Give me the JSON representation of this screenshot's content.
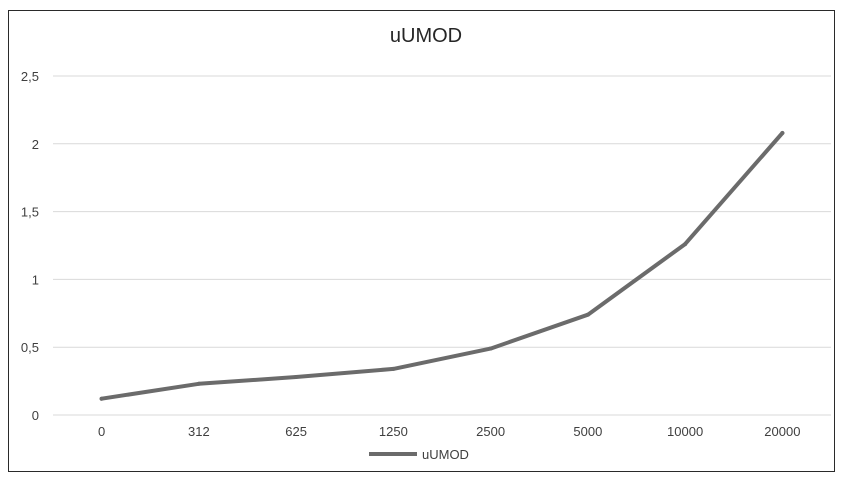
{
  "chart_data": {
    "type": "line",
    "title": "uUMOD",
    "xlabel": "",
    "ylabel": "",
    "categories": [
      "0",
      "312",
      "625",
      "1250",
      "2500",
      "5000",
      "10000",
      "20000"
    ],
    "series": [
      {
        "name": "uUMOD",
        "values": [
          0.12,
          0.23,
          0.28,
          0.34,
          0.49,
          0.74,
          1.26,
          2.08
        ]
      }
    ],
    "ylim": [
      0,
      2.5
    ],
    "yticks": [
      "0",
      "0,5",
      "1",
      "1,5",
      "2",
      "2,5"
    ],
    "grid": true,
    "legend": "bottom",
    "colors": {
      "line": "#6b6b6b",
      "grid": "#d9d9d9",
      "text": "#3f3f3f",
      "frame": "#2a2a2a"
    }
  }
}
